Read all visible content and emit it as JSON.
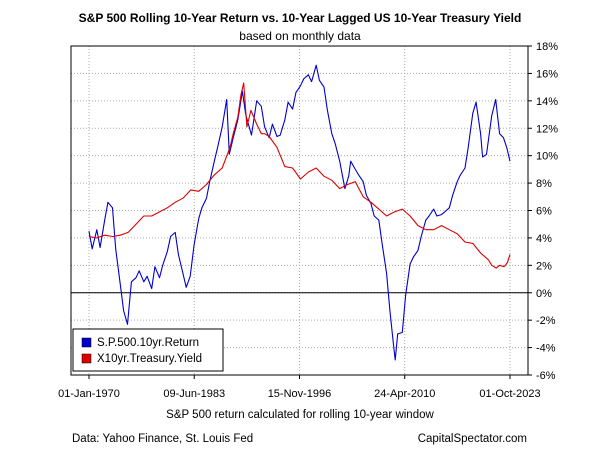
{
  "chart_data": {
    "type": "line",
    "title": "S&P 500 Rolling 10-Year Return vs. 10-Year Lagged US 10-Year Treasury Yield",
    "subtitle": "based on monthly data",
    "xlabel": "S&P 500 return calculated for rolling 10-year window",
    "ylabel": "",
    "x_ticks": [
      "01-Jan-1970",
      "09-Jun-1983",
      "15-Nov-1996",
      "24-Apr-2010",
      "01-Oct-2023"
    ],
    "y_ticks": [
      "-6%",
      "-4%",
      "-2%",
      "0%",
      "2%",
      "4%",
      "6%",
      "8%",
      "10%",
      "12%",
      "14%",
      "16%",
      "18%"
    ],
    "xlim": [
      "1970-01-01",
      "2023-10-01"
    ],
    "ylim": [
      -6,
      18
    ],
    "grid": true,
    "legend_position": "bottom-left",
    "zero_line": true,
    "series": [
      {
        "name": "S.P.500.10yr.Return",
        "color": "#0000cc",
        "points": [
          [
            "1970-01-01",
            4.5
          ],
          [
            "1970-06-01",
            3.2
          ],
          [
            "1971-01-01",
            4.6
          ],
          [
            "1971-06-01",
            3.3
          ],
          [
            "1972-01-01",
            5.3
          ],
          [
            "1972-06-01",
            6.6
          ],
          [
            "1973-01-01",
            6.2
          ],
          [
            "1973-06-01",
            3.2
          ],
          [
            "1974-01-01",
            0.6
          ],
          [
            "1974-06-01",
            -1.3
          ],
          [
            "1974-12-01",
            -2.3
          ],
          [
            "1975-06-01",
            0.8
          ],
          [
            "1976-01-01",
            1.1
          ],
          [
            "1976-06-01",
            1.6
          ],
          [
            "1977-01-01",
            0.8
          ],
          [
            "1977-06-01",
            1.2
          ],
          [
            "1978-01-01",
            0.3
          ],
          [
            "1978-06-01",
            1.9
          ],
          [
            "1979-01-01",
            1.1
          ],
          [
            "1979-06-01",
            2.0
          ],
          [
            "1980-01-01",
            3.0
          ],
          [
            "1980-06-01",
            4.1
          ],
          [
            "1981-01-01",
            4.4
          ],
          [
            "1981-06-01",
            2.8
          ],
          [
            "1982-01-01",
            1.4
          ],
          [
            "1982-06-01",
            0.4
          ],
          [
            "1982-12-01",
            1.2
          ],
          [
            "1983-06-01",
            3.5
          ],
          [
            "1984-01-01",
            5.4
          ],
          [
            "1984-06-01",
            6.2
          ],
          [
            "1985-01-01",
            6.9
          ],
          [
            "1985-06-01",
            8.1
          ],
          [
            "1986-01-01",
            9.6
          ],
          [
            "1986-06-01",
            10.6
          ],
          [
            "1987-01-01",
            12.1
          ],
          [
            "1987-08-01",
            14.1
          ],
          [
            "1987-12-01",
            10.1
          ],
          [
            "1988-06-01",
            11.3
          ],
          [
            "1989-01-01",
            12.6
          ],
          [
            "1989-08-01",
            14.7
          ],
          [
            "1990-01-01",
            13.0
          ],
          [
            "1990-10-01",
            11.5
          ],
          [
            "1991-06-01",
            14.0
          ],
          [
            "1992-01-01",
            13.6
          ],
          [
            "1992-06-01",
            12.1
          ],
          [
            "1993-01-01",
            11.3
          ],
          [
            "1993-06-01",
            12.3
          ],
          [
            "1994-01-01",
            11.4
          ],
          [
            "1994-06-01",
            11.5
          ],
          [
            "1995-01-01",
            12.6
          ],
          [
            "1995-06-01",
            13.9
          ],
          [
            "1996-01-01",
            13.4
          ],
          [
            "1996-06-01",
            14.6
          ],
          [
            "1997-01-01",
            15.1
          ],
          [
            "1997-06-01",
            15.6
          ],
          [
            "1998-01-01",
            15.9
          ],
          [
            "1998-06-01",
            15.4
          ],
          [
            "1999-01-01",
            16.6
          ],
          [
            "1999-06-01",
            15.5
          ],
          [
            "2000-01-01",
            15.0
          ],
          [
            "2000-06-01",
            13.4
          ],
          [
            "2001-01-01",
            11.6
          ],
          [
            "2001-06-01",
            10.9
          ],
          [
            "2002-01-01",
            9.6
          ],
          [
            "2002-09-01",
            7.6
          ],
          [
            "2003-03-01",
            8.5
          ],
          [
            "2003-06-01",
            9.6
          ],
          [
            "2004-01-01",
            9.0
          ],
          [
            "2004-06-01",
            8.6
          ],
          [
            "2005-01-01",
            8.1
          ],
          [
            "2005-06-01",
            7.1
          ],
          [
            "2006-01-01",
            6.5
          ],
          [
            "2006-06-01",
            5.6
          ],
          [
            "2007-01-01",
            5.3
          ],
          [
            "2007-06-01",
            3.6
          ],
          [
            "2008-01-01",
            1.4
          ],
          [
            "2008-06-01",
            -1.3
          ],
          [
            "2008-11-01",
            -3.6
          ],
          [
            "2009-02-01",
            -4.9
          ],
          [
            "2009-06-01",
            -3.0
          ],
          [
            "2010-01-01",
            -2.9
          ],
          [
            "2010-06-01",
            -0.2
          ],
          [
            "2011-01-01",
            2.1
          ],
          [
            "2011-06-01",
            2.6
          ],
          [
            "2012-01-01",
            3.1
          ],
          [
            "2012-06-01",
            4.1
          ],
          [
            "2013-01-01",
            5.3
          ],
          [
            "2013-06-01",
            5.6
          ],
          [
            "2014-01-01",
            6.1
          ],
          [
            "2014-06-01",
            5.6
          ],
          [
            "2015-01-01",
            5.7
          ],
          [
            "2015-06-01",
            5.9
          ],
          [
            "2016-01-01",
            6.2
          ],
          [
            "2016-06-01",
            7.1
          ],
          [
            "2017-01-01",
            8.1
          ],
          [
            "2017-06-01",
            8.6
          ],
          [
            "2018-01-01",
            9.1
          ],
          [
            "2018-06-01",
            10.6
          ],
          [
            "2019-01-01",
            13.1
          ],
          [
            "2019-06-01",
            13.9
          ],
          [
            "2020-01-01",
            11.6
          ],
          [
            "2020-04-01",
            9.9
          ],
          [
            "2020-10-01",
            10.1
          ],
          [
            "2021-06-01",
            12.9
          ],
          [
            "2021-12-01",
            14.1
          ],
          [
            "2022-06-01",
            11.6
          ],
          [
            "2022-12-01",
            11.3
          ],
          [
            "2023-05-01",
            10.6
          ],
          [
            "2023-10-01",
            9.6
          ]
        ]
      },
      {
        "name": "X10yr.Treasury.Yield",
        "color": "#dd0000",
        "points": [
          [
            "1970-01-01",
            4.1
          ],
          [
            "1971-01-01",
            4.0
          ],
          [
            "1972-01-01",
            4.2
          ],
          [
            "1973-01-01",
            4.1
          ],
          [
            "1974-01-01",
            4.2
          ],
          [
            "1975-01-01",
            4.4
          ],
          [
            "1976-01-01",
            5.0
          ],
          [
            "1977-01-01",
            5.6
          ],
          [
            "1978-01-01",
            5.6
          ],
          [
            "1979-01-01",
            5.9
          ],
          [
            "1980-01-01",
            6.2
          ],
          [
            "1981-01-01",
            6.6
          ],
          [
            "1982-01-01",
            6.9
          ],
          [
            "1983-01-01",
            7.5
          ],
          [
            "1984-01-01",
            7.4
          ],
          [
            "1985-01-01",
            7.9
          ],
          [
            "1986-01-01",
            8.6
          ],
          [
            "1987-01-01",
            9.1
          ],
          [
            "1988-01-01",
            10.6
          ],
          [
            "1988-06-01",
            11.6
          ],
          [
            "1989-01-01",
            12.8
          ],
          [
            "1989-06-01",
            14.5
          ],
          [
            "1989-10-01",
            15.3
          ],
          [
            "1990-03-01",
            12.1
          ],
          [
            "1990-09-01",
            13.3
          ],
          [
            "1991-06-01",
            12.3
          ],
          [
            "1992-01-01",
            11.6
          ],
          [
            "1992-06-01",
            11.6
          ],
          [
            "1993-01-01",
            11.4
          ],
          [
            "1994-01-01",
            10.6
          ],
          [
            "1995-01-01",
            9.2
          ],
          [
            "1996-01-01",
            9.1
          ],
          [
            "1997-01-01",
            8.3
          ],
          [
            "1998-01-01",
            8.8
          ],
          [
            "1999-01-01",
            9.1
          ],
          [
            "2000-01-01",
            8.5
          ],
          [
            "2001-01-01",
            8.2
          ],
          [
            "2002-01-01",
            7.6
          ],
          [
            "2003-01-01",
            7.9
          ],
          [
            "2004-01-01",
            8.1
          ],
          [
            "2005-01-01",
            7.0
          ],
          [
            "2006-01-01",
            6.6
          ],
          [
            "2007-01-01",
            6.1
          ],
          [
            "2008-01-01",
            5.6
          ],
          [
            "2009-01-01",
            5.9
          ],
          [
            "2010-01-01",
            6.1
          ],
          [
            "2011-01-01",
            5.6
          ],
          [
            "2012-01-01",
            4.9
          ],
          [
            "2013-01-01",
            4.6
          ],
          [
            "2014-01-01",
            4.6
          ],
          [
            "2015-01-01",
            4.9
          ],
          [
            "2016-01-01",
            4.6
          ],
          [
            "2017-01-01",
            4.3
          ],
          [
            "2018-01-01",
            3.7
          ],
          [
            "2019-01-01",
            3.6
          ],
          [
            "2020-01-01",
            2.9
          ],
          [
            "2021-01-01",
            2.4
          ],
          [
            "2021-06-01",
            2.0
          ],
          [
            "2022-01-01",
            1.8
          ],
          [
            "2022-06-01",
            2.0
          ],
          [
            "2023-01-01",
            1.9
          ],
          [
            "2023-06-01",
            2.2
          ],
          [
            "2023-10-01",
            2.8
          ]
        ]
      }
    ]
  },
  "footer": {
    "source": "Data: Yahoo Finance, St. Louis Fed",
    "brand": "CapitalSpectator.com"
  }
}
